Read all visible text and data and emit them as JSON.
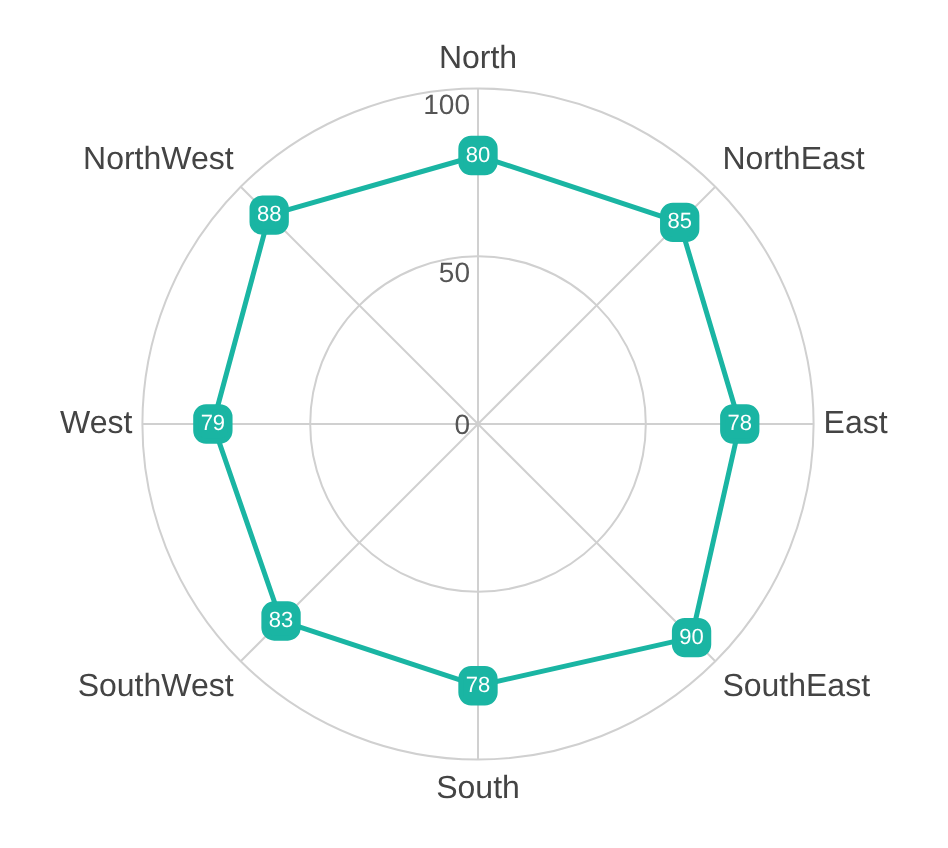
{
  "chart_data": {
    "type": "radar",
    "categories": [
      "North",
      "NorthEast",
      "East",
      "SouthEast",
      "South",
      "SouthWest",
      "West",
      "NorthWest"
    ],
    "series": [
      {
        "color": "#1ab5a3",
        "values": [
          80,
          85,
          78,
          90,
          78,
          83,
          79,
          88
        ]
      }
    ],
    "ylim": [
      0,
      100
    ],
    "yticks": [
      0,
      50,
      100
    ],
    "grid": true,
    "legend": false,
    "marker": "square",
    "line_style": "solid",
    "data_labels": true
  }
}
